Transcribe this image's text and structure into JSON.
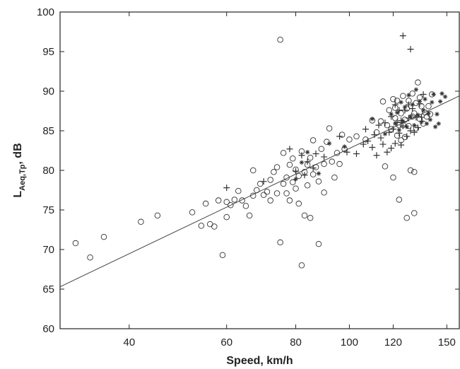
{
  "chart_data": {
    "type": "scatter",
    "xlabel": "Speed, km/h",
    "ylabel": {
      "main": "L",
      "subscript": "Aeq,Tp",
      "suffix": ", dB"
    },
    "x_scale": "log",
    "xlim": [
      30,
      158
    ],
    "ylim": [
      60,
      100
    ],
    "x_ticks": [
      40,
      60,
      80,
      100,
      120,
      150
    ],
    "x_tick_labels": [
      "40",
      "60",
      "80",
      "100",
      "120",
      "150"
    ],
    "y_ticks": [
      60,
      65,
      70,
      75,
      80,
      85,
      90,
      95,
      100
    ],
    "y_tick_labels": [
      "60",
      "65",
      "70",
      "75",
      "80",
      "85",
      "90",
      "95",
      "100"
    ],
    "grid": false,
    "legend": "none",
    "colors": {
      "marker": "#333333",
      "axis": "#222222",
      "line": "#444444"
    },
    "series": [
      {
        "marker": "circle",
        "points": [
          [
            32,
            70.8
          ],
          [
            34,
            69.0
          ],
          [
            36,
            71.6
          ],
          [
            42,
            73.5
          ],
          [
            45,
            74.3
          ],
          [
            52,
            74.7
          ],
          [
            54,
            73.0
          ],
          [
            55,
            75.8
          ],
          [
            56,
            73.2
          ],
          [
            57,
            72.9
          ],
          [
            58,
            76.2
          ],
          [
            59,
            69.3
          ],
          [
            60,
            74.1
          ],
          [
            60,
            76.0
          ],
          [
            61,
            75.6
          ],
          [
            62,
            76.3
          ],
          [
            63,
            77.4
          ],
          [
            64,
            76.2
          ],
          [
            65,
            75.5
          ],
          [
            66,
            74.3
          ],
          [
            67,
            76.8
          ],
          [
            67,
            80.0
          ],
          [
            68,
            77.5
          ],
          [
            69,
            78.3
          ],
          [
            70,
            76.9
          ],
          [
            71,
            77.3
          ],
          [
            72,
            78.8
          ],
          [
            72,
            76.2
          ],
          [
            73,
            79.8
          ],
          [
            74,
            77.1
          ],
          [
            74,
            80.4
          ],
          [
            75,
            96.5
          ],
          [
            75,
            70.9
          ],
          [
            76,
            78.3
          ],
          [
            76,
            82.2
          ],
          [
            77,
            79.1
          ],
          [
            77,
            77.1
          ],
          [
            78,
            80.7
          ],
          [
            78,
            76.2
          ],
          [
            79,
            78.5
          ],
          [
            79,
            81.5
          ],
          [
            80,
            80.1
          ],
          [
            80,
            77.7
          ],
          [
            81,
            79.3
          ],
          [
            81,
            75.8
          ],
          [
            82,
            82.4
          ],
          [
            82,
            68.0
          ],
          [
            83,
            79.8
          ],
          [
            83,
            74.3
          ],
          [
            84,
            80.7
          ],
          [
            84,
            78.1
          ],
          [
            85,
            74.0
          ],
          [
            85,
            81.6
          ],
          [
            86,
            79.5
          ],
          [
            86,
            83.8
          ],
          [
            87,
            80.4
          ],
          [
            88,
            78.6
          ],
          [
            88,
            70.7
          ],
          [
            89,
            82.7
          ],
          [
            90,
            77.2
          ],
          [
            90,
            80.8
          ],
          [
            91,
            83.6
          ],
          [
            92,
            85.3
          ],
          [
            93,
            81.1
          ],
          [
            94,
            79.1
          ],
          [
            95,
            82.2
          ],
          [
            96,
            80.8
          ],
          [
            97,
            84.5
          ],
          [
            98,
            82.7
          ],
          [
            100,
            83.9
          ],
          [
            103,
            84.3
          ],
          [
            107,
            83.9
          ],
          [
            110,
            86.3
          ],
          [
            112,
            84.8
          ],
          [
            114,
            86.2
          ],
          [
            115,
            88.7
          ],
          [
            116,
            80.5
          ],
          [
            117,
            85.7
          ],
          [
            118,
            87.6
          ],
          [
            119,
            85.2
          ],
          [
            120,
            89.0
          ],
          [
            120,
            79.1
          ],
          [
            121,
            86.6
          ],
          [
            121,
            87.9
          ],
          [
            122,
            84.4
          ],
          [
            122,
            88.8
          ],
          [
            123,
            85.7
          ],
          [
            123,
            76.3
          ],
          [
            124,
            87.2
          ],
          [
            124,
            83.8
          ],
          [
            125,
            85.7
          ],
          [
            125,
            89.4
          ],
          [
            126,
            86.4
          ],
          [
            126,
            84.2
          ],
          [
            127,
            87.8
          ],
          [
            127,
            74.0
          ],
          [
            128,
            88.8
          ],
          [
            128,
            85.6
          ],
          [
            129,
            80.0
          ],
          [
            130,
            86.8
          ],
          [
            130,
            89.7
          ],
          [
            131,
            87.2
          ],
          [
            131,
            74.6
          ],
          [
            131,
            79.8
          ],
          [
            132,
            88.5
          ],
          [
            132,
            85.3
          ],
          [
            133,
            91.1
          ],
          [
            134,
            86.5
          ],
          [
            134,
            89.2
          ],
          [
            135,
            88.1
          ],
          [
            136,
            85.9
          ],
          [
            137,
            87.3
          ],
          [
            138,
            86.8
          ],
          [
            139,
            88.1
          ],
          [
            140,
            87.1
          ],
          [
            141,
            89.6
          ]
        ]
      },
      {
        "marker": "plus",
        "points": [
          [
            60,
            77.8
          ],
          [
            70,
            78.6
          ],
          [
            78,
            82.7
          ],
          [
            80,
            79.9
          ],
          [
            82,
            81.9
          ],
          [
            83,
            79.4
          ],
          [
            84,
            81.1
          ],
          [
            86,
            80.3
          ],
          [
            87,
            82.1
          ],
          [
            90,
            81.7
          ],
          [
            96,
            84.3
          ],
          [
            99,
            82.3
          ],
          [
            103,
            82.1
          ],
          [
            106,
            83.3
          ],
          [
            107,
            85.2
          ],
          [
            108,
            83.7
          ],
          [
            110,
            82.9
          ],
          [
            111,
            84.5
          ],
          [
            112,
            81.9
          ],
          [
            113,
            85.7
          ],
          [
            114,
            84.1
          ],
          [
            115,
            83.3
          ],
          [
            116,
            86.0
          ],
          [
            117,
            82.3
          ],
          [
            118,
            84.8
          ],
          [
            119,
            86.8
          ],
          [
            119,
            82.8
          ],
          [
            120,
            85.2
          ],
          [
            121,
            88.3
          ],
          [
            121,
            83.4
          ],
          [
            122,
            86.1
          ],
          [
            123,
            84.7
          ],
          [
            123,
            87.6
          ],
          [
            124,
            86.3
          ],
          [
            124,
            83.2
          ],
          [
            125,
            97.0
          ],
          [
            125,
            85.6
          ],
          [
            126,
            87.6
          ],
          [
            127,
            84.3
          ],
          [
            128,
            86.6
          ],
          [
            128,
            88.3
          ],
          [
            129,
            95.3
          ],
          [
            129,
            85.0
          ],
          [
            130,
            87.8
          ],
          [
            131,
            84.8
          ],
          [
            132,
            86.7
          ],
          [
            133,
            85.4
          ],
          [
            134,
            88.4
          ],
          [
            135,
            86.7
          ],
          [
            136,
            89.6
          ]
        ]
      },
      {
        "marker": "asterisk",
        "points": [
          [
            80,
            78.9
          ],
          [
            82,
            81.0
          ],
          [
            84,
            82.3
          ],
          [
            88,
            79.6
          ],
          [
            92,
            83.4
          ],
          [
            98,
            83.0
          ],
          [
            110,
            86.5
          ],
          [
            116,
            84.6
          ],
          [
            119,
            87.1
          ],
          [
            121,
            85.9
          ],
          [
            122,
            87.3
          ],
          [
            123,
            85.1
          ],
          [
            124,
            88.6
          ],
          [
            125,
            86.2
          ],
          [
            126,
            88.0
          ],
          [
            127,
            85.5
          ],
          [
            128,
            89.5
          ],
          [
            129,
            86.8
          ],
          [
            130,
            88.3
          ],
          [
            131,
            85.7
          ],
          [
            132,
            90.2
          ],
          [
            133,
            87.0
          ],
          [
            134,
            88.7
          ],
          [
            135,
            86.1
          ],
          [
            136,
            87.6
          ],
          [
            137,
            89.0
          ],
          [
            138,
            85.9
          ],
          [
            139,
            87.2
          ],
          [
            140,
            86.4
          ],
          [
            141,
            88.6
          ],
          [
            142,
            89.6
          ],
          [
            143,
            85.5
          ],
          [
            144,
            87.1
          ],
          [
            145,
            85.9
          ],
          [
            146,
            88.7
          ],
          [
            147,
            89.7
          ],
          [
            149,
            89.3
          ]
        ]
      }
    ],
    "regression_line": {
      "x": [
        30,
        158
      ],
      "y": [
        65.3,
        89.4
      ]
    }
  }
}
